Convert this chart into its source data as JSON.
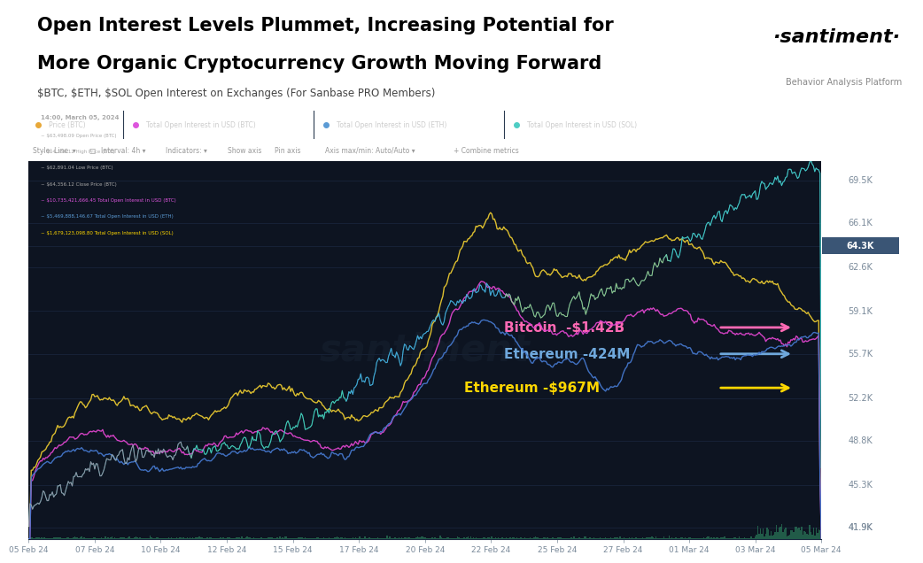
{
  "title_line1": "Open Interest Levels Plummet, Increasing Potential for",
  "title_line2": "More Organic Cryptocurrency Growth Moving Forward",
  "subtitle": "$BTC, $ETH, $SOL Open Interest on Exchanges (For Sanbase PRO Members)",
  "santiment_text": "·santiment·",
  "santiment_sub": "Behavior Analysis Platform",
  "bg_color": "#0d1421",
  "header_bg": "#ffffff",
  "x_labels": [
    "05 Feb 24",
    "07 Feb 24",
    "10 Feb 24",
    "12 Feb 24",
    "15 Feb 24",
    "17 Feb 24",
    "20 Feb 24",
    "22 Feb 24",
    "25 Feb 24",
    "27 Feb 24",
    "01 Mar 24",
    "03 Mar 24",
    "05 Mar 24"
  ],
  "y_labels": [
    "69.5K",
    "66.1K",
    "64.3K",
    "62.6K",
    "59.1K",
    "55.7K",
    "52.2K",
    "48.8K",
    "45.3K",
    "41.9K"
  ],
  "y_values": [
    69500,
    66100,
    64300,
    62600,
    59100,
    55700,
    52200,
    48800,
    45300,
    41900
  ],
  "ymin": 41000,
  "ymax": 71000,
  "tab_colors": [
    "#e8a838",
    "#dd55dd",
    "#5b9bd5",
    "#4ecdc4"
  ],
  "tab_texts": [
    "Price (BTC)",
    "Total Open Interest in USD (BTC)",
    "Total Open Interest in USD (ETH)",
    "Total Open Interest in USD (SOL)"
  ],
  "ann_bitcoin": {
    "text": "Bitcoin  -$1.42B",
    "color": "#ff69b4"
  },
  "ann_ethereum1": {
    "text": "Ethereum -424M",
    "color": "#6fa8dc"
  },
  "ann_ethereum2": {
    "text": "Ethereum -$967M",
    "color": "#ffd700"
  },
  "tooltip_date": "14:00, March 05, 2024",
  "tooltip_lines": [
    "~ $63,498.09 Open Price (BTC)",
    "~ $64,356.12 High Price (BTC)",
    "~ $62,891.04 Low Price (BTC)",
    "~ $64,356.12 Close Price (BTC)",
    "~ $10,735,421,666.45 Total Open Interest in USD (BTC)",
    "~ $5,469,888,146.67 Total Open Interest in USD (ETH)",
    "~ $1,679,123,098.80 Total Open Interest in USD (SOL)"
  ],
  "tooltip_line_colors": [
    "#aaaaaa",
    "#aaaaaa",
    "#aaaaaa",
    "#aaaaaa",
    "#dd55dd",
    "#5b9bd5",
    "#ffd700"
  ]
}
